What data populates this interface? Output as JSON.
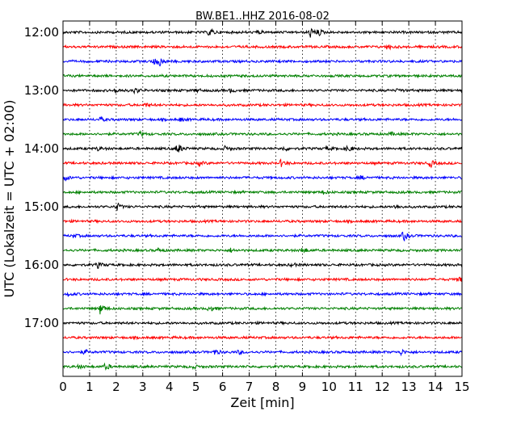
{
  "chart_data": {
    "type": "line",
    "title": "BW.BE1..HHZ 2016-08-02",
    "xlabel": "Zeit  [min]",
    "ylabel": "UTC (Lokalzeit = UTC + 02:00)",
    "xlim": [
      0,
      15
    ],
    "x_ticks": [
      "0",
      "1",
      "2",
      "3",
      "4",
      "5",
      "6",
      "7",
      "8",
      "9",
      "10",
      "11",
      "12",
      "13",
      "14",
      "15"
    ],
    "hour_labels": [
      "12:00",
      "13:00",
      "14:00",
      "15:00",
      "16:00",
      "17:00"
    ],
    "lines_per_hour": 4,
    "minutes_per_line": 15,
    "grid": "vertical dotted",
    "trace_colors": [
      "#000000",
      "#ff0000",
      "#0000ff",
      "#008000"
    ],
    "events": [
      [
        [
          5.5,
          0.8
        ],
        [
          7.3,
          0.3
        ],
        [
          9.3,
          0.9
        ],
        [
          9.6,
          0.5
        ]
      ],
      [
        [
          12.2,
          0.5
        ]
      ],
      [
        [
          3.6,
          0.9
        ],
        [
          3.4,
          0.5
        ]
      ],
      [],
      [
        [
          2.0,
          0.4
        ],
        [
          2.7,
          0.5
        ],
        [
          5.0,
          0.3
        ],
        [
          6.3,
          0.3
        ],
        [
          12.6,
          0.3
        ]
      ],
      [
        [
          3.1,
          0.3
        ]
      ],
      [
        [
          1.4,
          0.35
        ],
        [
          4.4,
          0.3
        ]
      ],
      [
        [
          2.9,
          0.4
        ],
        [
          12.3,
          0.3
        ]
      ],
      [
        [
          1.3,
          0.3
        ],
        [
          4.3,
          1.0
        ],
        [
          6.1,
          0.4
        ],
        [
          8.3,
          0.35
        ],
        [
          9.9,
          0.35
        ],
        [
          10.7,
          0.7
        ]
      ],
      [
        [
          5.1,
          0.4
        ],
        [
          8.2,
          0.6
        ],
        [
          13.8,
          0.7
        ]
      ],
      [
        [
          0.1,
          0.4
        ],
        [
          11.2,
          0.3
        ]
      ],
      [
        [
          9.8,
          0.3
        ]
      ],
      [
        [
          2.0,
          0.8
        ],
        [
          12.5,
          0.4
        ]
      ],
      [],
      [
        [
          12.8,
          0.9
        ],
        [
          0.4,
          0.3
        ]
      ],
      [
        [
          3.6,
          0.35
        ],
        [
          6.3,
          0.3
        ],
        [
          9.0,
          0.6
        ]
      ],
      [
        [
          1.3,
          0.5
        ],
        [
          8.6,
          0.3
        ]
      ],
      [
        [
          14.9,
          0.7
        ]
      ],
      [
        [
          0.2,
          0.3
        ]
      ],
      [
        [
          1.4,
          1.0
        ],
        [
          5.5,
          0.6
        ]
      ],
      [],
      [],
      [
        [
          0.8,
          0.4
        ],
        [
          5.7,
          0.5
        ],
        [
          6.6,
          0.3
        ],
        [
          12.7,
          0.5
        ]
      ],
      [
        [
          1.6,
          0.6
        ],
        [
          4.9,
          0.3
        ],
        [
          0.6,
          0.3
        ]
      ]
    ]
  }
}
